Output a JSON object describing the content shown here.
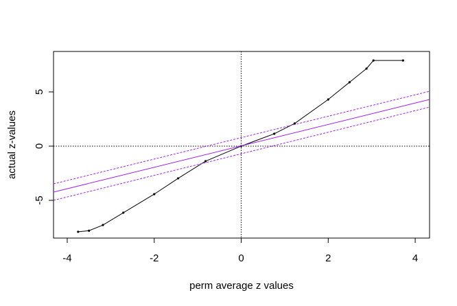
{
  "chart_data": {
    "type": "line",
    "x_label": "perm average z values",
    "y_label": "actual z-values",
    "xlim": [
      -4.315,
      4.33
    ],
    "ylim": [
      -8.48,
      8.73
    ],
    "xticks": [
      -4,
      -2,
      0,
      2,
      4
    ],
    "yticks": [
      -5,
      0,
      5
    ],
    "hline": 0,
    "vline": 0,
    "series": [
      {
        "color": "#000000",
        "linestyle": "solid",
        "marker": true,
        "x": [
          -3.75,
          -3.5,
          -3.18,
          -2.71,
          -2.0,
          -1.45,
          -0.82,
          0.0,
          0.76,
          1.23,
          2.0,
          2.49,
          2.88,
          3.04,
          3.72
        ],
        "values": [
          -7.9,
          -7.8,
          -7.28,
          -6.14,
          -4.43,
          -2.97,
          -1.39,
          0.0,
          1.14,
          2.09,
          4.3,
          5.89,
          7.15,
          7.9,
          7.9
        ]
      },
      {
        "color": "#a020f0",
        "linestyle": "solid",
        "marker": false,
        "x": [
          -4.315,
          4.33
        ],
        "values": [
          -4.24,
          4.3
        ]
      },
      {
        "color": "#a020f0",
        "linestyle": "dashed",
        "marker": false,
        "x": [
          -4.315,
          4.33
        ],
        "values": [
          -3.48,
          5.06
        ]
      },
      {
        "color": "#a020f0",
        "linestyle": "dashed",
        "marker": false,
        "x": [
          -4.315,
          4.33
        ],
        "values": [
          -5.0,
          3.6
        ]
      }
    ]
  }
}
